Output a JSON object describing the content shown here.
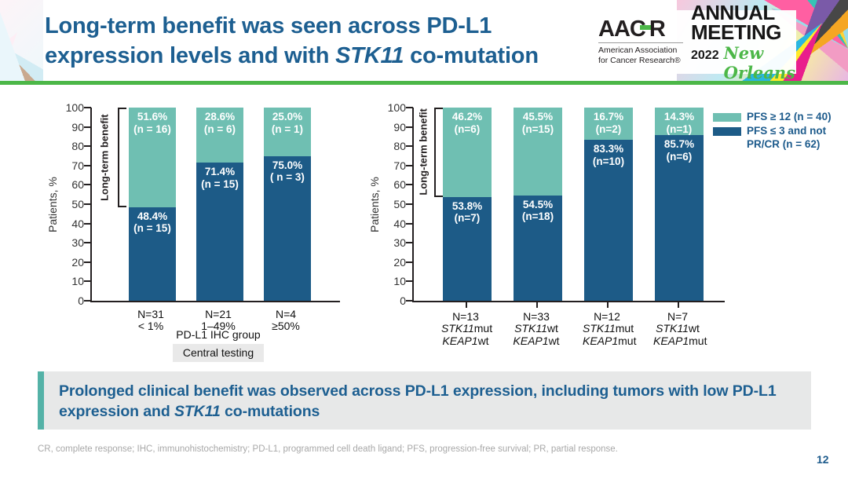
{
  "slide": {
    "title_lines": [
      [
        {
          "text": "Long-term benefit was seen across PD-L1",
          "italic": false
        }
      ],
      [
        {
          "text": "expression levels and with ",
          "italic": false
        },
        {
          "text": "STK11",
          "italic": true
        },
        {
          "text": " co-mutation",
          "italic": false
        }
      ]
    ],
    "callout_runs": [
      {
        "text": "Prolonged clinical benefit was observed across PD-L1 expression, including tumors with low PD-L1 expression and ",
        "italic": false
      },
      {
        "text": "STK11",
        "italic": true
      },
      {
        "text": " co-mutations",
        "italic": false
      }
    ],
    "footnote": "CR, complete response; IHC, immunohistochemistry; PD-L1, programmed cell death ligand; PFS, progression-free survival; PR, partial response.",
    "page_number": "12"
  },
  "logo": {
    "aacr_left": "AAC",
    "aacr_right": "R",
    "org_line1": "American Association",
    "org_line2": "for Cancer Research®",
    "meeting_line1": "ANNUAL",
    "meeting_line2": "MEETING",
    "year": "2022",
    "city": "New Orleans"
  },
  "colors": {
    "teal": "#6fbfb2",
    "navy": "#1d5b87",
    "accent_green": "#4cb748",
    "title_blue": "#1d5f91",
    "callout_border": "#54b2a7"
  },
  "legend": {
    "items": [
      {
        "label": "PFS ≥ 12 (n = 40)",
        "color": "#6fbfb2"
      },
      {
        "label": "PFS ≤ 3 and not PR/CR (n = 62)",
        "color": "#1d5b87"
      }
    ]
  },
  "chart_data": [
    {
      "type": "bar",
      "stacked": true,
      "ylabel": "Patients, %",
      "ylim": [
        0,
        100
      ],
      "yticks": [
        0,
        10,
        20,
        30,
        40,
        50,
        60,
        70,
        80,
        90,
        100
      ],
      "bracket": {
        "label": "Long-term benefit",
        "from_pct": 100,
        "to_pct": 48.4
      },
      "categories": [
        {
          "lines": [
            [
              {
                "text": "N=31"
              }
            ],
            [
              {
                "text": "< 1%"
              }
            ]
          ]
        },
        {
          "lines": [
            [
              {
                "text": "N=21"
              }
            ],
            [
              {
                "text": "1–49%"
              }
            ]
          ]
        },
        {
          "lines": [
            [
              {
                "text": "N=4"
              }
            ],
            [
              {
                "text": "≥50%"
              }
            ]
          ]
        }
      ],
      "series": [
        {
          "name": "PFS ≥ 12 (n = 40)",
          "position": "top",
          "color": "#6fbfb2",
          "values": [
            51.6,
            28.6,
            25.0
          ],
          "labels": [
            {
              "pct": "51.6%",
              "n": "(n = 16)"
            },
            {
              "pct": "28.6%",
              "n": "(n = 6)"
            },
            {
              "pct": "25.0%",
              "n": "(n = 1)"
            }
          ]
        },
        {
          "name": "PFS ≤ 3 and not PR/CR (n = 62)",
          "position": "bottom",
          "color": "#1d5b87",
          "values": [
            48.4,
            71.4,
            75.0
          ],
          "labels": [
            {
              "pct": "48.4%",
              "n": "(n = 15)"
            },
            {
              "pct": "71.4%",
              "n": "(n = 15)"
            },
            {
              "pct": "75.0%",
              "n": "( n = 3)"
            }
          ]
        }
      ],
      "xlabel": "PD-L1 IHC group",
      "xlabel_box": "Central testing",
      "x_ticks": false
    },
    {
      "type": "bar",
      "stacked": true,
      "ylabel": "Patients, %",
      "ylim": [
        0,
        100
      ],
      "yticks": [
        0,
        10,
        20,
        30,
        40,
        50,
        60,
        70,
        80,
        90,
        100
      ],
      "bracket": {
        "label": "Long-term benefit",
        "from_pct": 100,
        "to_pct": 53.8
      },
      "categories": [
        {
          "lines": [
            [
              {
                "text": "N=13"
              }
            ],
            [
              {
                "text": "STK11",
                "italic": true
              },
              {
                "text": "mut"
              }
            ],
            [
              {
                "text": "KEAP1",
                "italic": true
              },
              {
                "text": "wt"
              }
            ]
          ]
        },
        {
          "lines": [
            [
              {
                "text": "N=33"
              }
            ],
            [
              {
                "text": "STK11",
                "italic": true
              },
              {
                "text": "wt"
              }
            ],
            [
              {
                "text": "KEAP1",
                "italic": true
              },
              {
                "text": "wt"
              }
            ]
          ]
        },
        {
          "lines": [
            [
              {
                "text": "N=12"
              }
            ],
            [
              {
                "text": "STK11",
                "italic": true
              },
              {
                "text": "mut"
              }
            ],
            [
              {
                "text": "KEAP1",
                "italic": true
              },
              {
                "text": "mut"
              }
            ]
          ]
        },
        {
          "lines": [
            [
              {
                "text": "N=7"
              }
            ],
            [
              {
                "text": "STK11",
                "italic": true
              },
              {
                "text": "wt"
              }
            ],
            [
              {
                "text": "KEAP1",
                "italic": true
              },
              {
                "text": "mut"
              }
            ]
          ]
        }
      ],
      "series": [
        {
          "name": "PFS ≥ 12 (n = 40)",
          "position": "top",
          "color": "#6fbfb2",
          "values": [
            46.2,
            45.5,
            16.7,
            14.3
          ],
          "labels": [
            {
              "pct": "46.2%",
              "n": "(n=6)"
            },
            {
              "pct": "45.5%",
              "n": "(n=15)"
            },
            {
              "pct": "16.7%",
              "n": "(n=2)"
            },
            {
              "pct": "14.3%",
              "n": "(n=1)"
            }
          ]
        },
        {
          "name": "PFS ≤ 3 and not PR/CR (n = 62)",
          "position": "bottom",
          "color": "#1d5b87",
          "values": [
            53.8,
            54.5,
            83.3,
            85.7
          ],
          "labels": [
            {
              "pct": "53.8%",
              "n": "(n=7)"
            },
            {
              "pct": "54.5%",
              "n": "(n=18)"
            },
            {
              "pct": "83.3%",
              "n": "(n=10)"
            },
            {
              "pct": "85.7%",
              "n": "(n=6)"
            }
          ]
        }
      ],
      "xlabel": "",
      "xlabel_box": "",
      "x_ticks": true
    }
  ]
}
